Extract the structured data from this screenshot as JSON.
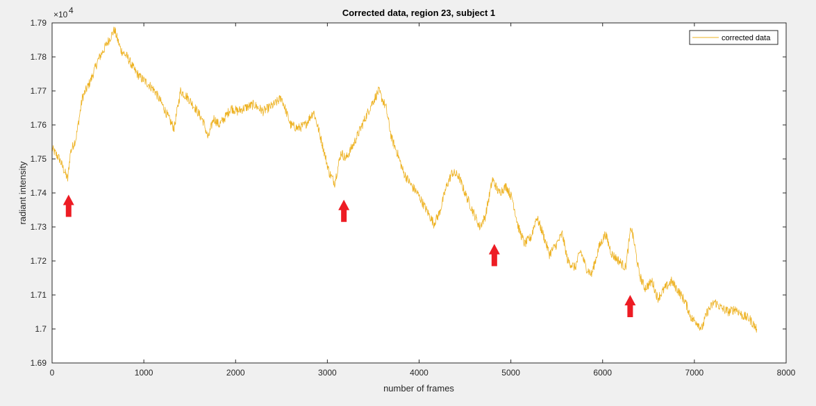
{
  "chart_data": {
    "type": "line",
    "title": "Corrected data, region 23, subject 1",
    "xlabel": "number of frames",
    "ylabel": "radiant intensity",
    "y_exponent_label": "×10",
    "y_exponent_power": "4",
    "xlim": [
      0,
      8000
    ],
    "ylim": [
      16900,
      17900
    ],
    "x_ticks": [
      0,
      1000,
      2000,
      3000,
      4000,
      5000,
      6000,
      7000,
      8000
    ],
    "x_tick_labels": [
      "0",
      "1000",
      "2000",
      "3000",
      "4000",
      "5000",
      "6000",
      "7000",
      "8000"
    ],
    "y_ticks": [
      16900,
      17000,
      17100,
      17200,
      17300,
      17400,
      17500,
      17600,
      17700,
      17800,
      17900
    ],
    "y_tick_labels": [
      "1.69",
      "1.7",
      "1.71",
      "1.72",
      "1.73",
      "1.74",
      "1.75",
      "1.76",
      "1.77",
      "1.78",
      "1.79"
    ],
    "grid": false,
    "legend_position": "top-right",
    "series": [
      {
        "name": "corrected data",
        "color": "#edb120",
        "x": [
          0,
          80,
          140,
          170,
          200,
          260,
          330,
          420,
          500,
          560,
          620,
          680,
          750,
          820,
          900,
          960,
          1050,
          1120,
          1200,
          1270,
          1330,
          1400,
          1480,
          1560,
          1650,
          1700,
          1760,
          1820,
          1880,
          1950,
          2020,
          2100,
          2200,
          2300,
          2420,
          2500,
          2600,
          2680,
          2760,
          2850,
          2930,
          3020,
          3080,
          3150,
          3200,
          3280,
          3380,
          3480,
          3560,
          3640,
          3700,
          3760,
          3830,
          3920,
          3980,
          4060,
          4160,
          4220,
          4300,
          4360,
          4430,
          4500,
          4580,
          4660,
          4720,
          4800,
          4870,
          4950,
          5020,
          5080,
          5150,
          5220,
          5280,
          5350,
          5420,
          5500,
          5560,
          5620,
          5700,
          5760,
          5820,
          5880,
          5960,
          6030,
          6100,
          6180,
          6250,
          6310,
          6340,
          6400,
          6460,
          6540,
          6600,
          6680,
          6750,
          6830,
          6900,
          6970,
          7030,
          7080,
          7140,
          7220,
          7300,
          7380,
          7450,
          7520,
          7600,
          7680
        ],
        "y": [
          17530,
          17500,
          17460,
          17440,
          17520,
          17560,
          17680,
          17730,
          17790,
          17820,
          17850,
          17880,
          17820,
          17800,
          17760,
          17740,
          17720,
          17700,
          17660,
          17620,
          17590,
          17700,
          17680,
          17650,
          17610,
          17560,
          17620,
          17600,
          17620,
          17650,
          17640,
          17650,
          17660,
          17640,
          17660,
          17680,
          17600,
          17590,
          17600,
          17640,
          17560,
          17460,
          17430,
          17520,
          17500,
          17540,
          17600,
          17660,
          17700,
          17650,
          17560,
          17520,
          17460,
          17420,
          17400,
          17360,
          17310,
          17340,
          17420,
          17460,
          17450,
          17400,
          17350,
          17300,
          17330,
          17440,
          17400,
          17420,
          17380,
          17300,
          17250,
          17270,
          17330,
          17280,
          17220,
          17250,
          17280,
          17200,
          17180,
          17230,
          17180,
          17160,
          17240,
          17280,
          17220,
          17200,
          17180,
          17300,
          17260,
          17160,
          17120,
          17140,
          17090,
          17120,
          17140,
          17110,
          17080,
          17030,
          17020,
          17000,
          17050,
          17080,
          17060,
          17050,
          17060,
          17040,
          17030,
          17000
        ]
      }
    ],
    "annotations": [
      {
        "kind": "arrow-up",
        "color": "#ed1c24",
        "x": 180,
        "y": 17395
      },
      {
        "kind": "arrow-up",
        "color": "#ed1c24",
        "x": 3180,
        "y": 17380
      },
      {
        "kind": "arrow-up",
        "color": "#ed1c24",
        "x": 4820,
        "y": 17250
      },
      {
        "kind": "arrow-up",
        "color": "#ed1c24",
        "x": 6300,
        "y": 17100
      }
    ]
  }
}
